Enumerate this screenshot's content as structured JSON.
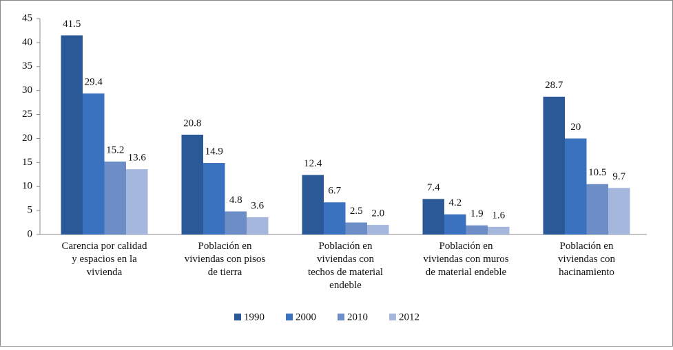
{
  "chart_data": {
    "type": "bar",
    "categories": [
      "Carencia por calidad\ny espacios en la\nvivienda",
      "Población en\nviviendas con pisos\nde tierra",
      "Población en\nviviendas con\ntechos de material\nendeble",
      "Población en\nviviendas con muros\nde material endeble",
      "Población en\nviviendas con\nhacinamiento"
    ],
    "series": [
      {
        "name": "1990",
        "color": "#2b5896",
        "values": [
          41.5,
          20.8,
          12.4,
          7.4,
          28.7
        ]
      },
      {
        "name": "2000",
        "color": "#3b72c0",
        "values": [
          29.4,
          14.9,
          6.7,
          4.2,
          20
        ]
      },
      {
        "name": "2010",
        "color": "#6d8dc6",
        "values": [
          15.2,
          4.8,
          2.5,
          1.9,
          10.5
        ]
      },
      {
        "name": "2012",
        "color": "#a5b7dc",
        "values": [
          13.6,
          3.6,
          2,
          1.6,
          9.7
        ],
        "value_labels": [
          "13.6",
          "3.6",
          "2.0",
          "1.6",
          "9.7"
        ]
      }
    ],
    "ylim": [
      0,
      45
    ],
    "yticks": [
      0,
      5,
      10,
      15,
      20,
      25,
      30,
      35,
      40,
      45
    ],
    "legend": "bottom"
  }
}
